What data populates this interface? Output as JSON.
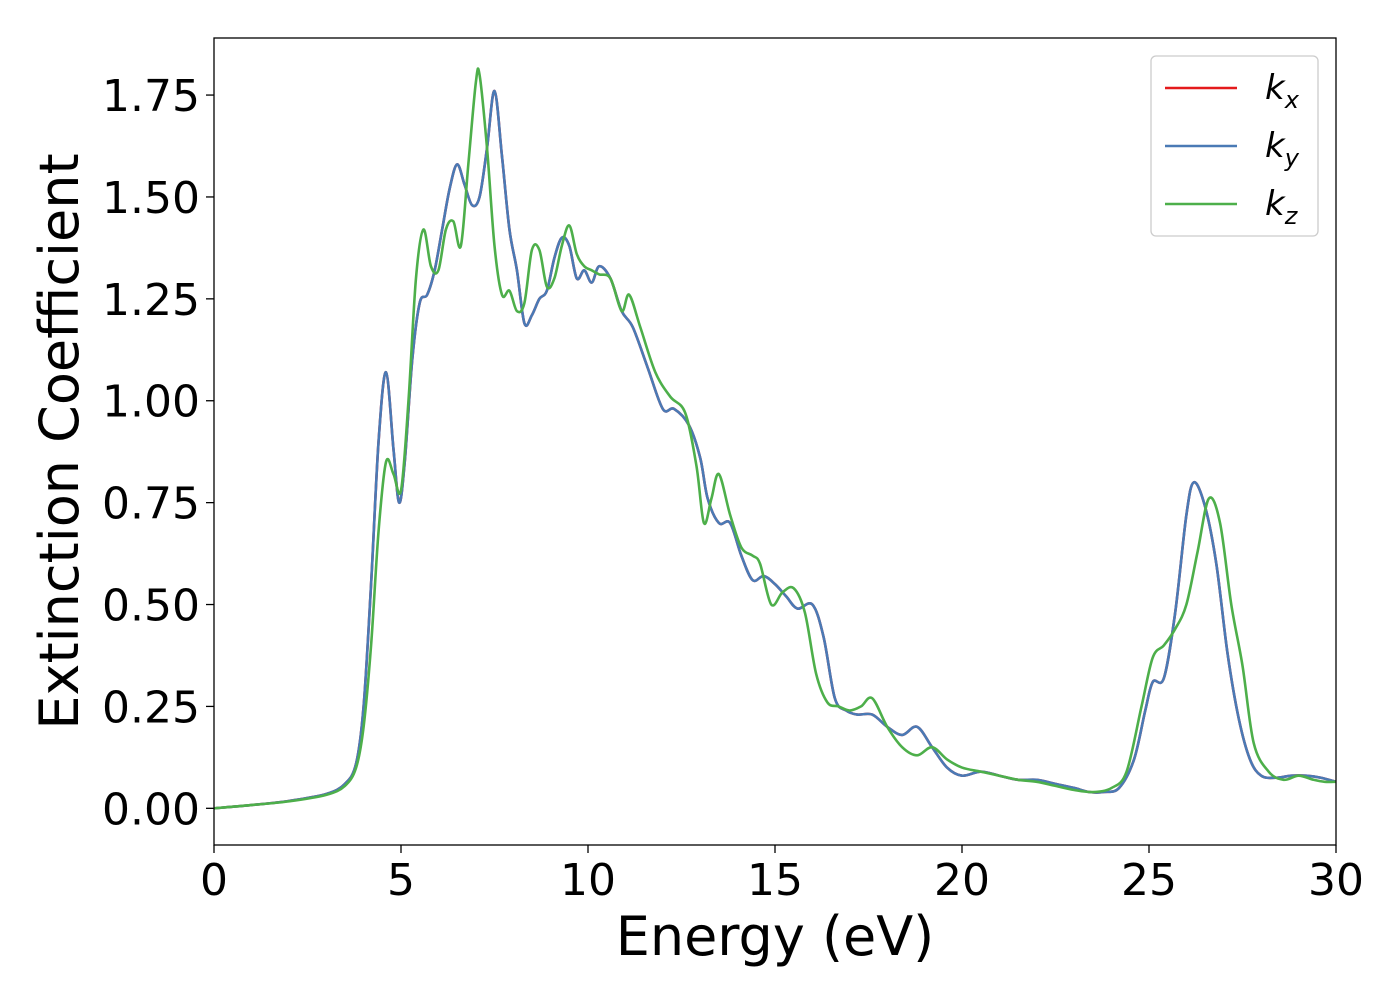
{
  "chart_data": {
    "type": "line",
    "xlabel": "Energy (eV)",
    "ylabel": "Extinction Coefficient",
    "xlim": [
      0,
      30
    ],
    "ylim": [
      -0.09,
      1.89
    ],
    "xticks": [
      0,
      5,
      10,
      15,
      20,
      25,
      30
    ],
    "yticks": [
      0.0,
      0.25,
      0.5,
      0.75,
      1.0,
      1.25,
      1.5,
      1.75
    ],
    "xtick_labels": [
      "0",
      "5",
      "10",
      "15",
      "20",
      "25",
      "30"
    ],
    "ytick_labels": [
      "0.00",
      "0.25",
      "0.50",
      "0.75",
      "1.00",
      "1.25",
      "1.50",
      "1.75"
    ],
    "grid": false,
    "legend_position": "top-right",
    "series": [
      {
        "name": "k_x",
        "label_base": "k",
        "label_sub": "x",
        "color": "#e41a1c",
        "x": [
          0,
          1,
          2,
          3,
          3.5,
          3.8,
          4.0,
          4.2,
          4.4,
          4.6,
          4.8,
          4.95,
          5.1,
          5.3,
          5.5,
          5.7,
          5.9,
          6.1,
          6.3,
          6.5,
          6.7,
          6.9,
          7.1,
          7.3,
          7.5,
          7.7,
          7.9,
          8.1,
          8.3,
          8.5,
          8.7,
          8.9,
          9.1,
          9.3,
          9.5,
          9.7,
          9.9,
          10.1,
          10.3,
          10.6,
          10.9,
          11.2,
          11.6,
          12.0,
          12.3,
          12.7,
          13.0,
          13.2,
          13.5,
          13.8,
          14.1,
          14.4,
          14.7,
          15.0,
          15.3,
          15.6,
          16.0,
          16.3,
          16.6,
          16.9,
          17.2,
          17.6,
          18.0,
          18.4,
          18.8,
          19.2,
          19.6,
          20.0,
          20.5,
          21.0,
          21.5,
          22.0,
          22.5,
          23.0,
          23.4,
          23.8,
          24.2,
          24.6,
          24.9,
          25.1,
          25.4,
          25.7,
          26.0,
          26.2,
          26.5,
          26.8,
          27.1,
          27.4,
          27.7,
          28.0,
          28.4,
          28.8,
          29.2,
          29.6,
          30.0
        ],
        "values": [
          0.0,
          0.008,
          0.018,
          0.035,
          0.06,
          0.11,
          0.25,
          0.55,
          0.9,
          1.07,
          0.88,
          0.75,
          0.85,
          1.1,
          1.24,
          1.26,
          1.32,
          1.42,
          1.52,
          1.58,
          1.53,
          1.48,
          1.5,
          1.62,
          1.76,
          1.6,
          1.42,
          1.32,
          1.19,
          1.21,
          1.25,
          1.27,
          1.35,
          1.4,
          1.38,
          1.3,
          1.32,
          1.29,
          1.33,
          1.3,
          1.22,
          1.18,
          1.08,
          0.98,
          0.98,
          0.94,
          0.86,
          0.76,
          0.7,
          0.7,
          0.62,
          0.56,
          0.57,
          0.55,
          0.52,
          0.49,
          0.5,
          0.42,
          0.27,
          0.24,
          0.23,
          0.23,
          0.2,
          0.18,
          0.2,
          0.15,
          0.1,
          0.08,
          0.09,
          0.08,
          0.07,
          0.07,
          0.06,
          0.05,
          0.04,
          0.04,
          0.05,
          0.12,
          0.24,
          0.31,
          0.32,
          0.48,
          0.72,
          0.8,
          0.74,
          0.6,
          0.38,
          0.22,
          0.12,
          0.08,
          0.075,
          0.08,
          0.08,
          0.075,
          0.065
        ]
      },
      {
        "name": "k_y",
        "label_base": "k",
        "label_sub": "y",
        "color": "#4a7ab5",
        "x": [
          0,
          1,
          2,
          3,
          3.5,
          3.8,
          4.0,
          4.2,
          4.4,
          4.6,
          4.8,
          4.95,
          5.1,
          5.3,
          5.5,
          5.7,
          5.9,
          6.1,
          6.3,
          6.5,
          6.7,
          6.9,
          7.1,
          7.3,
          7.5,
          7.7,
          7.9,
          8.1,
          8.3,
          8.5,
          8.7,
          8.9,
          9.1,
          9.3,
          9.5,
          9.7,
          9.9,
          10.1,
          10.3,
          10.6,
          10.9,
          11.2,
          11.6,
          12.0,
          12.3,
          12.7,
          13.0,
          13.2,
          13.5,
          13.8,
          14.1,
          14.4,
          14.7,
          15.0,
          15.3,
          15.6,
          16.0,
          16.3,
          16.6,
          16.9,
          17.2,
          17.6,
          18.0,
          18.4,
          18.8,
          19.2,
          19.6,
          20.0,
          20.5,
          21.0,
          21.5,
          22.0,
          22.5,
          23.0,
          23.4,
          23.8,
          24.2,
          24.6,
          24.9,
          25.1,
          25.4,
          25.7,
          26.0,
          26.2,
          26.5,
          26.8,
          27.1,
          27.4,
          27.7,
          28.0,
          28.4,
          28.8,
          29.2,
          29.6,
          30.0
        ],
        "values": [
          0.0,
          0.008,
          0.018,
          0.035,
          0.06,
          0.11,
          0.25,
          0.55,
          0.9,
          1.07,
          0.88,
          0.75,
          0.85,
          1.1,
          1.24,
          1.26,
          1.32,
          1.42,
          1.52,
          1.58,
          1.53,
          1.48,
          1.5,
          1.62,
          1.76,
          1.6,
          1.42,
          1.32,
          1.19,
          1.21,
          1.25,
          1.27,
          1.35,
          1.4,
          1.38,
          1.3,
          1.32,
          1.29,
          1.33,
          1.3,
          1.22,
          1.18,
          1.08,
          0.98,
          0.98,
          0.94,
          0.86,
          0.76,
          0.7,
          0.7,
          0.62,
          0.56,
          0.57,
          0.55,
          0.52,
          0.49,
          0.5,
          0.42,
          0.27,
          0.24,
          0.23,
          0.23,
          0.2,
          0.18,
          0.2,
          0.15,
          0.1,
          0.08,
          0.09,
          0.08,
          0.07,
          0.07,
          0.06,
          0.05,
          0.04,
          0.04,
          0.05,
          0.12,
          0.24,
          0.31,
          0.32,
          0.48,
          0.72,
          0.8,
          0.74,
          0.6,
          0.38,
          0.22,
          0.12,
          0.08,
          0.075,
          0.08,
          0.08,
          0.075,
          0.065
        ]
      },
      {
        "name": "k_z",
        "label_base": "k",
        "label_sub": "z",
        "color": "#4daf4a",
        "x": [
          0,
          1,
          2,
          3,
          3.5,
          3.8,
          4.0,
          4.2,
          4.4,
          4.6,
          4.8,
          5.0,
          5.2,
          5.4,
          5.6,
          5.8,
          6.0,
          6.2,
          6.4,
          6.6,
          6.8,
          7.0,
          7.1,
          7.3,
          7.5,
          7.7,
          7.9,
          8.1,
          8.3,
          8.5,
          8.7,
          8.9,
          9.1,
          9.3,
          9.5,
          9.7,
          9.9,
          10.1,
          10.3,
          10.6,
          10.9,
          11.1,
          11.4,
          11.8,
          12.2,
          12.6,
          12.9,
          13.1,
          13.3,
          13.5,
          13.8,
          14.1,
          14.4,
          14.6,
          14.9,
          15.2,
          15.5,
          15.8,
          16.1,
          16.4,
          16.7,
          17.0,
          17.3,
          17.6,
          18.0,
          18.4,
          18.8,
          19.2,
          19.6,
          20.0,
          20.5,
          21.0,
          21.5,
          22.0,
          22.5,
          23.0,
          23.5,
          24.0,
          24.4,
          24.8,
          25.1,
          25.4,
          25.7,
          26.0,
          26.3,
          26.6,
          26.9,
          27.2,
          27.5,
          27.8,
          28.2,
          28.6,
          29.0,
          29.4,
          29.7,
          30.0
        ],
        "values": [
          0.0,
          0.008,
          0.017,
          0.033,
          0.055,
          0.1,
          0.2,
          0.4,
          0.68,
          0.85,
          0.82,
          0.78,
          1.0,
          1.3,
          1.42,
          1.33,
          1.32,
          1.42,
          1.44,
          1.38,
          1.58,
          1.78,
          1.8,
          1.62,
          1.38,
          1.26,
          1.27,
          1.22,
          1.24,
          1.37,
          1.37,
          1.28,
          1.3,
          1.38,
          1.43,
          1.36,
          1.33,
          1.32,
          1.31,
          1.3,
          1.22,
          1.26,
          1.18,
          1.07,
          1.01,
          0.97,
          0.84,
          0.7,
          0.76,
          0.82,
          0.72,
          0.64,
          0.62,
          0.6,
          0.5,
          0.53,
          0.54,
          0.48,
          0.33,
          0.26,
          0.25,
          0.24,
          0.25,
          0.27,
          0.2,
          0.15,
          0.13,
          0.15,
          0.12,
          0.1,
          0.09,
          0.08,
          0.07,
          0.065,
          0.055,
          0.045,
          0.04,
          0.05,
          0.09,
          0.25,
          0.37,
          0.4,
          0.44,
          0.5,
          0.63,
          0.76,
          0.7,
          0.5,
          0.35,
          0.16,
          0.09,
          0.07,
          0.08,
          0.07,
          0.065,
          0.065
        ]
      }
    ]
  }
}
